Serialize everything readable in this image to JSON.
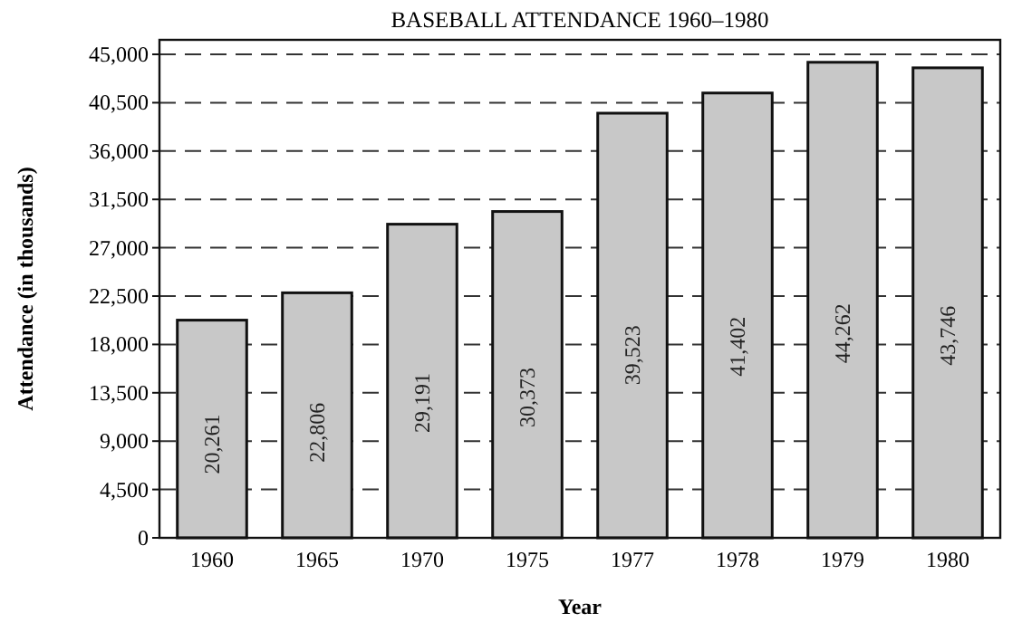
{
  "chart_data": {
    "type": "bar",
    "title": "BASEBALL ATTENDANCE 1960–1980",
    "xlabel": "Year",
    "ylabel": "Attendance (in thousands)",
    "categories": [
      "1960",
      "1965",
      "1970",
      "1975",
      "1977",
      "1978",
      "1979",
      "1980"
    ],
    "values": [
      20261,
      22806,
      29191,
      30373,
      39523,
      41402,
      44262,
      43746
    ],
    "value_labels": [
      "20,261",
      "22,806",
      "29,191",
      "30,373",
      "39,523",
      "41,402",
      "44,262",
      "43,746"
    ],
    "color": "#c8c8c8",
    "ylim": [
      0,
      46350
    ],
    "yticks": [
      0,
      {
        "value": 4500,
        "label": "4,500"
      },
      {
        "value": 9000,
        "label": "9,000"
      },
      {
        "value": 13500,
        "label": "13,500"
      },
      {
        "value": 18000,
        "label": "18,000"
      },
      {
        "value": 22500,
        "label": "22,500"
      },
      {
        "value": 27000,
        "label": "27,000"
      },
      {
        "value": 31500,
        "label": "31,500"
      },
      {
        "value": 36000,
        "label": "36,000"
      },
      {
        "value": 40500,
        "label": "40,500"
      },
      {
        "value": 45000,
        "label": "45,000"
      }
    ],
    "grid": "y",
    "line_style": "dashed"
  }
}
